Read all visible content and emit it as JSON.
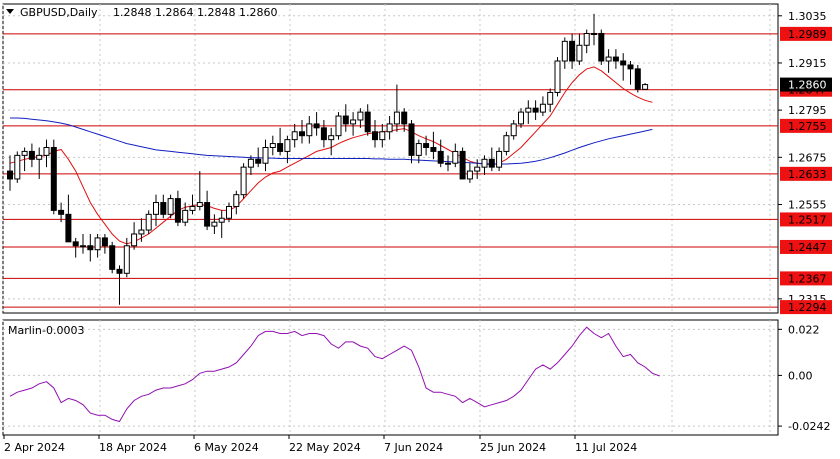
{
  "header": {
    "symbol": "GBPUSD,Daily",
    "ohlc": "1.2848 1.2864 1.2848 1.2860"
  },
  "indicator": {
    "name": "Marlin",
    "value": "-0.0003",
    "levels": [
      "0.022",
      "0.00",
      "-0.0242"
    ]
  },
  "x_labels": [
    "2 Apr 2024",
    "18 Apr 2024",
    "6 May 2024",
    "22 May 2024",
    "7 Jun 2024",
    "25 Jun 2024",
    "11 Jul 2024"
  ],
  "price_axis": [
    "1.3035",
    "1.2915",
    "1.2795",
    "1.2675",
    "1.2555",
    "1.2315"
  ],
  "horizontal_levels": [
    {
      "label": "1.2989",
      "value": 1.2989
    },
    {
      "label": "1.2847",
      "value": 1.2847
    },
    {
      "label": "1.2755",
      "value": 1.2755
    },
    {
      "label": "1.2633",
      "value": 1.2633
    },
    {
      "label": "1.2517",
      "value": 1.2517
    },
    {
      "label": "1.2447",
      "value": 1.2447
    },
    {
      "label": "1.2367",
      "value": 1.2367
    },
    {
      "label": "1.2294",
      "value": 1.2294
    }
  ],
  "current_price": {
    "label": "1.2860",
    "value": 1.286
  },
  "colors": {
    "level_line": "#cc0000",
    "level_label_bg": "#ee1111",
    "fast_ma": "#e01010",
    "slow_ma": "#1020c0",
    "oscillator": "#9010b0",
    "grid": "#c8c8c8",
    "current_bg": "#000000"
  },
  "chart_data": {
    "type": "candlestick",
    "ylim": [
      1.2279,
      1.3065
    ],
    "candles": [
      [
        1.264,
        1.268,
        1.259,
        1.262
      ],
      [
        1.262,
        1.269,
        1.261,
        1.268
      ],
      [
        1.268,
        1.27,
        1.264,
        1.269
      ],
      [
        1.269,
        1.271,
        1.265,
        1.267
      ],
      [
        1.267,
        1.27,
        1.262,
        1.268
      ],
      [
        1.268,
        1.272,
        1.265,
        1.27
      ],
      [
        1.27,
        1.272,
        1.253,
        1.254
      ],
      [
        1.254,
        1.256,
        1.251,
        1.253
      ],
      [
        1.253,
        1.258,
        1.246,
        1.246
      ],
      [
        1.246,
        1.247,
        1.242,
        1.245
      ],
      [
        1.245,
        1.248,
        1.243,
        1.245
      ],
      [
        1.245,
        1.248,
        1.241,
        1.244
      ],
      [
        1.244,
        1.248,
        1.242,
        1.247
      ],
      [
        1.247,
        1.248,
        1.243,
        1.245
      ],
      [
        1.245,
        1.246,
        1.238,
        1.239
      ],
      [
        1.239,
        1.24,
        1.23,
        1.238
      ],
      [
        1.238,
        1.247,
        1.237,
        1.245
      ],
      [
        1.245,
        1.251,
        1.244,
        1.248
      ],
      [
        1.248,
        1.252,
        1.246,
        1.249
      ],
      [
        1.249,
        1.254,
        1.248,
        1.253
      ],
      [
        1.253,
        1.258,
        1.25,
        1.256
      ],
      [
        1.256,
        1.258,
        1.252,
        1.253
      ],
      [
        1.253,
        1.258,
        1.252,
        1.257
      ],
      [
        1.257,
        1.259,
        1.25,
        1.251
      ],
      [
        1.251,
        1.256,
        1.25,
        1.254
      ],
      [
        1.254,
        1.258,
        1.253,
        1.255
      ],
      [
        1.255,
        1.264,
        1.254,
        1.256
      ],
      [
        1.256,
        1.259,
        1.249,
        1.25
      ],
      [
        1.25,
        1.253,
        1.248,
        1.251
      ],
      [
        1.251,
        1.254,
        1.247,
        1.252
      ],
      [
        1.252,
        1.256,
        1.251,
        1.255
      ],
      [
        1.255,
        1.259,
        1.253,
        1.258
      ],
      [
        1.258,
        1.266,
        1.257,
        1.265
      ],
      [
        1.265,
        1.268,
        1.263,
        1.267
      ],
      [
        1.267,
        1.27,
        1.265,
        1.266
      ],
      [
        1.266,
        1.272,
        1.264,
        1.27
      ],
      [
        1.27,
        1.273,
        1.268,
        1.271
      ],
      [
        1.271,
        1.275,
        1.268,
        1.269
      ],
      [
        1.269,
        1.273,
        1.266,
        1.272
      ],
      [
        1.272,
        1.276,
        1.27,
        1.274
      ],
      [
        1.274,
        1.277,
        1.271,
        1.273
      ],
      [
        1.273,
        1.278,
        1.271,
        1.276
      ],
      [
        1.276,
        1.279,
        1.273,
        1.275
      ],
      [
        1.275,
        1.277,
        1.27,
        1.272
      ],
      [
        1.272,
        1.275,
        1.268,
        1.273
      ],
      [
        1.273,
        1.279,
        1.272,
        1.278
      ],
      [
        1.278,
        1.281,
        1.274,
        1.276
      ],
      [
        1.276,
        1.279,
        1.273,
        1.277
      ],
      [
        1.277,
        1.28,
        1.275,
        1.279
      ],
      [
        1.279,
        1.281,
        1.273,
        1.274
      ],
      [
        1.274,
        1.277,
        1.27,
        1.272
      ],
      [
        1.272,
        1.276,
        1.27,
        1.274
      ],
      [
        1.274,
        1.278,
        1.272,
        1.276
      ],
      [
        1.276,
        1.286,
        1.274,
        1.279
      ],
      [
        1.279,
        1.28,
        1.274,
        1.276
      ],
      [
        1.276,
        1.277,
        1.266,
        1.268
      ],
      [
        1.268,
        1.272,
        1.266,
        1.271
      ],
      [
        1.271,
        1.273,
        1.268,
        1.27
      ],
      [
        1.27,
        1.274,
        1.267,
        1.269
      ],
      [
        1.269,
        1.272,
        1.265,
        1.266
      ],
      [
        1.266,
        1.268,
        1.264,
        1.266
      ],
      [
        1.266,
        1.271,
        1.265,
        1.269
      ],
      [
        1.269,
        1.27,
        1.262,
        1.262
      ],
      [
        1.262,
        1.266,
        1.261,
        1.264
      ],
      [
        1.264,
        1.267,
        1.262,
        1.265
      ],
      [
        1.265,
        1.268,
        1.263,
        1.267
      ],
      [
        1.267,
        1.27,
        1.264,
        1.265
      ],
      [
        1.265,
        1.27,
        1.264,
        1.269
      ],
      [
        1.269,
        1.274,
        1.268,
        1.273
      ],
      [
        1.273,
        1.277,
        1.272,
        1.276
      ],
      [
        1.276,
        1.28,
        1.275,
        1.279
      ],
      [
        1.279,
        1.282,
        1.276,
        1.28
      ],
      [
        1.28,
        1.282,
        1.277,
        1.279
      ],
      [
        1.279,
        1.283,
        1.278,
        1.281
      ],
      [
        1.281,
        1.285,
        1.279,
        1.284
      ],
      [
        1.284,
        1.293,
        1.283,
        1.292
      ],
      [
        1.292,
        1.298,
        1.29,
        1.297
      ],
      [
        1.297,
        1.299,
        1.29,
        1.292
      ],
      [
        1.292,
        1.299,
        1.291,
        1.296
      ],
      [
        1.296,
        1.3,
        1.294,
        1.299
      ],
      [
        1.299,
        1.304,
        1.296,
        1.299
      ],
      [
        1.299,
        1.3,
        1.291,
        1.292
      ],
      [
        1.292,
        1.295,
        1.289,
        1.293
      ],
      [
        1.293,
        1.295,
        1.29,
        1.292
      ],
      [
        1.292,
        1.294,
        1.287,
        1.291
      ],
      [
        1.291,
        1.292,
        1.286,
        1.29
      ],
      [
        1.29,
        1.291,
        1.284,
        1.2848
      ],
      [
        1.2848,
        1.2864,
        1.2848,
        1.286
      ]
    ],
    "series": [
      {
        "values": [
          1.266,
          1.2665,
          1.267,
          1.2674,
          1.2677,
          1.268,
          1.269,
          1.2695,
          1.267,
          1.264,
          1.26,
          1.256,
          1.253,
          1.2505,
          1.248,
          1.2462,
          1.2455,
          1.246,
          1.247,
          1.248,
          1.2495,
          1.251,
          1.2525,
          1.254,
          1.2548,
          1.2552,
          1.2555,
          1.2552,
          1.2545,
          1.254,
          1.254,
          1.255,
          1.257,
          1.259,
          1.261,
          1.2625,
          1.2635,
          1.264,
          1.265,
          1.266,
          1.267,
          1.268,
          1.269,
          1.2695,
          1.27,
          1.271,
          1.2718,
          1.2725,
          1.273,
          1.2735,
          1.2738,
          1.274,
          1.2742,
          1.2745,
          1.2748,
          1.274,
          1.273,
          1.2722,
          1.2715,
          1.2705,
          1.2695,
          1.2685,
          1.2675,
          1.2665,
          1.266,
          1.2658,
          1.2656,
          1.266,
          1.267,
          1.2685,
          1.27,
          1.272,
          1.274,
          1.276,
          1.278,
          1.281,
          1.284,
          1.2865,
          1.2885,
          1.29,
          1.2905,
          1.2895,
          1.288,
          1.2865,
          1.285,
          1.2838,
          1.2828,
          1.282,
          1.2815
        ]
      },
      {
        "values": [
          1.2775,
          1.2775,
          1.2774,
          1.2772,
          1.277,
          1.2768,
          1.2765,
          1.2762,
          1.2758,
          1.2752,
          1.2746,
          1.274,
          1.2734,
          1.2728,
          1.2722,
          1.2716,
          1.271,
          1.2706,
          1.2702,
          1.2698,
          1.2694,
          1.2692,
          1.269,
          1.2688,
          1.2686,
          1.2684,
          1.2682,
          1.268,
          1.2679,
          1.2678,
          1.2677,
          1.2676,
          1.2675,
          1.2674,
          1.2674,
          1.2673,
          1.2673,
          1.2672,
          1.2672,
          1.2672,
          1.2672,
          1.2672,
          1.2672,
          1.2672,
          1.2672,
          1.2672,
          1.2672,
          1.2672,
          1.2672,
          1.2672,
          1.2671,
          1.2671,
          1.267,
          1.267,
          1.267,
          1.2669,
          1.2668,
          1.2667,
          1.2666,
          1.2665,
          1.2664,
          1.2663,
          1.2662,
          1.2661,
          1.266,
          1.2659,
          1.2658,
          1.2658,
          1.2658,
          1.2659,
          1.266,
          1.2662,
          1.2665,
          1.2669,
          1.2674,
          1.268,
          1.2686,
          1.2693,
          1.27,
          1.2706,
          1.2712,
          1.2717,
          1.2722,
          1.2726,
          1.273,
          1.2734,
          1.2738,
          1.2742,
          1.2746
        ]
      }
    ],
    "oscillator": {
      "ylim": [
        -0.0242,
        0.022
      ],
      "values": [
        -0.01,
        -0.008,
        -0.007,
        -0.006,
        -0.004,
        -0.003,
        -0.006,
        -0.013,
        -0.011,
        -0.012,
        -0.014,
        -0.018,
        -0.019,
        -0.019,
        -0.021,
        -0.022,
        -0.016,
        -0.012,
        -0.01,
        -0.009,
        -0.007,
        -0.006,
        -0.006,
        -0.005,
        -0.004,
        -0.002,
        0.001,
        0.002,
        0.002,
        0.003,
        0.004,
        0.006,
        0.01,
        0.014,
        0.019,
        0.021,
        0.021,
        0.02,
        0.02,
        0.021,
        0.019,
        0.02,
        0.02,
        0.019,
        0.015,
        0.013,
        0.016,
        0.016,
        0.014,
        0.013,
        0.009,
        0.008,
        0.01,
        0.012,
        0.014,
        0.012,
        0.004,
        -0.006,
        -0.008,
        -0.008,
        -0.009,
        -0.01,
        -0.013,
        -0.011,
        -0.013,
        -0.015,
        -0.014,
        -0.013,
        -0.012,
        -0.01,
        -0.007,
        -0.002,
        0.003,
        0.005,
        0.003,
        0.006,
        0.01,
        0.014,
        0.019,
        0.023,
        0.02,
        0.018,
        0.02,
        0.014,
        0.009,
        0.01,
        0.006,
        0.004,
        0.001,
        -0.0003
      ]
    }
  }
}
